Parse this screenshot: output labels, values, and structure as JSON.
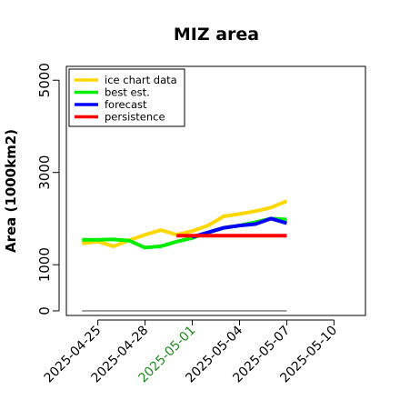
{
  "chart_data": {
    "type": "line",
    "title": "MIZ area",
    "xlabel": "",
    "ylabel": "Area (1000km2)",
    "xlim": [
      "2025-04-23",
      "2025-05-12"
    ],
    "ylim": [
      -100,
      5300
    ],
    "yticks": [
      0,
      1000,
      3000,
      5000
    ],
    "xticks": [
      {
        "date": "2025-04-25",
        "label": "2025-04-25",
        "color": "#000000"
      },
      {
        "date": "2025-04-28",
        "label": "2025-04-28",
        "color": "#000000"
      },
      {
        "date": "2025-05-01",
        "label": "2025-05-01",
        "color": "#228B22"
      },
      {
        "date": "2025-05-04",
        "label": "2025-05-04",
        "color": "#000000"
      },
      {
        "date": "2025-05-07",
        "label": "2025-05-07",
        "color": "#000000"
      },
      {
        "date": "2025-05-10",
        "label": "2025-05-10",
        "color": "#000000"
      }
    ],
    "legend_position": "top-left",
    "series": [
      {
        "name": "ice chart data",
        "color": "#FFD700",
        "x": [
          "2025-04-24",
          "2025-04-25",
          "2025-04-26",
          "2025-04-27",
          "2025-04-28",
          "2025-04-29",
          "2025-04-30",
          "2025-05-01",
          "2025-05-02",
          "2025-05-03",
          "2025-05-04",
          "2025-05-05",
          "2025-05-06",
          "2025-05-07"
        ],
        "y": [
          1460,
          1500,
          1400,
          1530,
          1650,
          1750,
          1650,
          1730,
          1850,
          2050,
          2100,
          2160,
          2240,
          2380
        ]
      },
      {
        "name": "best est.",
        "color": "#00EE00",
        "x": [
          "2025-04-24",
          "2025-04-25",
          "2025-04-26",
          "2025-04-27",
          "2025-04-28",
          "2025-04-29",
          "2025-04-30",
          "2025-05-01",
          "2025-05-02",
          "2025-05-03",
          "2025-05-04",
          "2025-05-05",
          "2025-05-06",
          "2025-05-07"
        ],
        "y": [
          1540,
          1540,
          1550,
          1520,
          1370,
          1400,
          1500,
          1580,
          1700,
          1800,
          1850,
          1920,
          2000,
          1980
        ]
      },
      {
        "name": "forecast",
        "color": "#0000FF",
        "x": [
          "2025-05-01",
          "2025-05-02",
          "2025-05-03",
          "2025-05-04",
          "2025-05-05",
          "2025-05-06",
          "2025-05-07"
        ],
        "y": [
          1600,
          1700,
          1800,
          1850,
          1880,
          2000,
          1900
        ]
      },
      {
        "name": "persistence",
        "color": "#FF0000",
        "x": [
          "2025-04-30",
          "2025-05-01",
          "2025-05-02",
          "2025-05-03",
          "2025-05-04",
          "2025-05-05",
          "2025-05-06",
          "2025-05-07"
        ],
        "y": [
          1630,
          1630,
          1630,
          1630,
          1630,
          1630,
          1630,
          1630
        ]
      },
      {
        "name": "",
        "color": "#888888",
        "x": [
          "2025-04-24",
          "2025-05-07"
        ],
        "y": [
          0,
          0
        ]
      }
    ]
  }
}
